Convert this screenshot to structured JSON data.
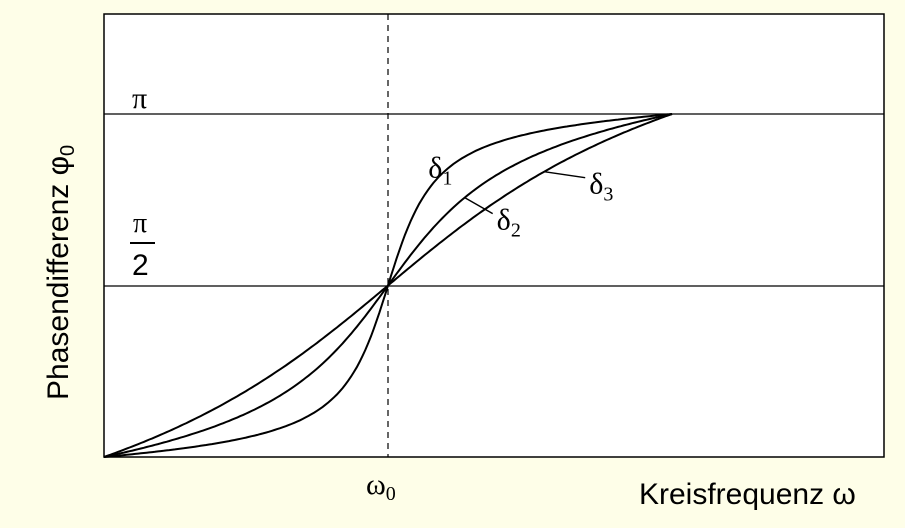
{
  "chart_data": {
    "type": "line",
    "ylabel": "Phasendifferenz φ",
    "ylabel_sub": "0",
    "xlabel": "Kreisfrequenz ω",
    "ytick_pi": "π",
    "ytick_half_num": "π",
    "ytick_half_den": "2",
    "xtick_main": "ω",
    "xtick_sub": "0",
    "x_range": [
      -1,
      1
    ],
    "y_range": [
      0,
      1
    ],
    "grid": false,
    "series": [
      {
        "name": "δ",
        "sub": "1",
        "delta": 0.12,
        "label_anchor": [
          0.17,
          0.82
        ]
      },
      {
        "name": "δ",
        "sub": "2",
        "delta": 0.28,
        "label_anchor": [
          0.27,
          0.6
        ]
      },
      {
        "name": "δ",
        "sub": "3",
        "delta": 0.46,
        "label_anchor": [
          0.55,
          0.82
        ]
      }
    ],
    "x": [
      -1,
      -0.9,
      -0.8,
      -0.7,
      -0.6,
      -0.5,
      -0.4,
      -0.3,
      -0.2,
      -0.1,
      0,
      0.1,
      0.2,
      0.3,
      0.4,
      0.5,
      0.6,
      0.7,
      0.8,
      0.9,
      1
    ]
  },
  "colors": {
    "background": "#fefee8",
    "plot_background": "#ffffff",
    "ink": "#000000"
  }
}
